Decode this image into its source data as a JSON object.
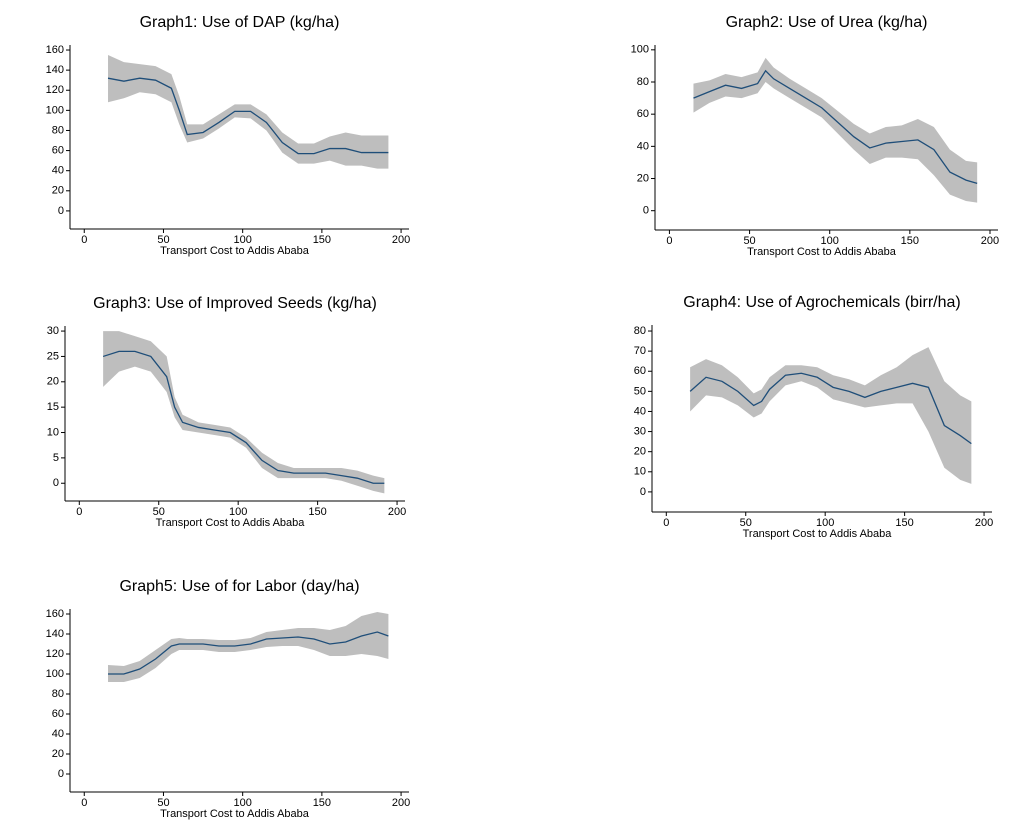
{
  "chart_data": [
    {
      "type": "line",
      "title": "Graph1: Use of DAP (kg/ha)",
      "x_label": "Transport Cost to Addis Ababa",
      "x": [
        15,
        25,
        35,
        45,
        55,
        60,
        65,
        75,
        85,
        95,
        105,
        115,
        125,
        135,
        145,
        155,
        165,
        175,
        185,
        192
      ],
      "values": [
        132,
        129,
        132,
        130,
        122,
        100,
        76,
        78,
        88,
        99,
        99,
        88,
        68,
        57,
        57,
        62,
        62,
        58,
        58,
        58
      ],
      "lower": [
        108,
        112,
        118,
        116,
        108,
        86,
        68,
        72,
        82,
        93,
        92,
        80,
        58,
        47,
        47,
        50,
        45,
        45,
        42,
        42
      ],
      "upper": [
        155,
        148,
        146,
        144,
        136,
        114,
        86,
        86,
        96,
        106,
        106,
        96,
        78,
        67,
        67,
        74,
        78,
        75,
        75,
        75
      ],
      "color": "#1f4e79",
      "band_color": "#bebebe",
      "xlim": [
        -9,
        205
      ],
      "ylim": [
        -18,
        165
      ],
      "xticks": [
        0,
        50,
        100,
        150,
        200
      ],
      "yticks": [
        0,
        20,
        40,
        60,
        80,
        100,
        120,
        140,
        160
      ]
    },
    {
      "type": "line",
      "title": "Graph2: Use of Urea (kg/ha)",
      "x_label": "Transport Cost to Addis Ababa",
      "x": [
        15,
        25,
        35,
        45,
        55,
        60,
        65,
        75,
        85,
        95,
        105,
        115,
        125,
        135,
        145,
        155,
        165,
        175,
        185,
        192
      ],
      "values": [
        70,
        74,
        78,
        76,
        79,
        87,
        82,
        76,
        70,
        64,
        55,
        46,
        39,
        42,
        43,
        44,
        38,
        24,
        19,
        17
      ],
      "lower": [
        61,
        67,
        71,
        70,
        73,
        80,
        76,
        70,
        64,
        58,
        48,
        38,
        29,
        33,
        33,
        32,
        22,
        10,
        6,
        5
      ],
      "upper": [
        79,
        81,
        85,
        83,
        86,
        95,
        89,
        82,
        76,
        70,
        62,
        54,
        48,
        52,
        53,
        57,
        52,
        38,
        31,
        30
      ],
      "color": "#1f4e79",
      "band_color": "#bebebe",
      "xlim": [
        -9,
        205
      ],
      "ylim": [
        -12,
        103
      ],
      "xticks": [
        0,
        50,
        100,
        150,
        200
      ],
      "yticks": [
        0,
        20,
        40,
        60,
        80,
        100
      ]
    },
    {
      "type": "line",
      "title": "Graph3: Use of Improved Seeds (kg/ha)",
      "x_label": "Transport Cost to Addis Ababa",
      "x": [
        15,
        25,
        35,
        45,
        55,
        60,
        65,
        75,
        85,
        95,
        105,
        115,
        125,
        135,
        145,
        155,
        165,
        175,
        185,
        192
      ],
      "values": [
        25,
        26,
        26,
        25,
        21,
        15,
        12,
        11,
        10.5,
        10,
        8,
        4.5,
        2.5,
        2,
        2,
        2,
        1.5,
        1,
        0,
        0
      ],
      "lower": [
        19,
        22,
        23,
        22,
        18,
        13,
        10.5,
        10,
        9.5,
        9,
        7,
        3,
        1,
        1,
        1,
        1,
        0.5,
        -0.5,
        -1.5,
        -2
      ],
      "upper": [
        30,
        30,
        29,
        28,
        25,
        17,
        13.5,
        12,
        11.5,
        11,
        9,
        6,
        4,
        3,
        3,
        3,
        3,
        2.5,
        1.5,
        1
      ],
      "color": "#1f4e79",
      "band_color": "#bebebe",
      "xlim": [
        -9,
        205
      ],
      "ylim": [
        -3.5,
        31
      ],
      "xticks": [
        0,
        50,
        100,
        150,
        200
      ],
      "yticks": [
        0,
        5,
        10,
        15,
        20,
        25,
        30
      ]
    },
    {
      "type": "line",
      "title": "Graph4: Use of Agrochemicals (birr/ha)",
      "x_label": "Transport Cost to Addis Ababa",
      "x": [
        15,
        25,
        35,
        45,
        55,
        60,
        65,
        75,
        85,
        95,
        105,
        115,
        125,
        135,
        145,
        155,
        165,
        175,
        185,
        192
      ],
      "values": [
        50,
        57,
        55,
        50,
        43,
        45,
        51,
        58,
        59,
        57,
        52,
        50,
        47,
        50,
        52,
        54,
        52,
        33,
        28,
        24
      ],
      "lower": [
        40,
        48,
        47,
        43,
        37,
        39,
        45,
        53,
        55,
        52,
        46,
        44,
        42,
        43,
        44,
        44,
        30,
        12,
        6,
        4
      ],
      "upper": [
        62,
        66,
        63,
        57,
        49,
        51,
        57,
        63,
        63,
        62,
        58,
        56,
        53,
        58,
        62,
        68,
        72,
        55,
        48,
        45
      ],
      "color": "#1f4e79",
      "band_color": "#bebebe",
      "xlim": [
        -9,
        205
      ],
      "ylim": [
        -10,
        83
      ],
      "xticks": [
        0,
        50,
        100,
        150,
        200
      ],
      "yticks": [
        0,
        10,
        20,
        30,
        40,
        50,
        60,
        70,
        80
      ]
    },
    {
      "type": "line",
      "title": "Graph5: Use of for Labor (day/ha)",
      "x_label": "Transport Cost to Addis Ababa",
      "x": [
        15,
        25,
        35,
        45,
        55,
        60,
        65,
        75,
        85,
        95,
        105,
        115,
        125,
        135,
        145,
        155,
        165,
        175,
        185,
        192
      ],
      "values": [
        100,
        100,
        105,
        115,
        128,
        130,
        130,
        130,
        128,
        128,
        130,
        135,
        136,
        137,
        135,
        130,
        132,
        138,
        142,
        138
      ],
      "lower": [
        92,
        92,
        96,
        106,
        120,
        124,
        124,
        124,
        122,
        122,
        124,
        127,
        128,
        128,
        124,
        118,
        118,
        120,
        118,
        115
      ],
      "upper": [
        109,
        108,
        113,
        124,
        135,
        136,
        135,
        135,
        134,
        134,
        136,
        142,
        144,
        146,
        146,
        144,
        148,
        158,
        162,
        160
      ],
      "color": "#1f4e79",
      "band_color": "#bebebe",
      "xlim": [
        -9,
        205
      ],
      "ylim": [
        -18,
        165
      ],
      "xticks": [
        0,
        50,
        100,
        150,
        200
      ],
      "yticks": [
        0,
        20,
        40,
        60,
        80,
        100,
        120,
        140,
        160
      ]
    }
  ]
}
